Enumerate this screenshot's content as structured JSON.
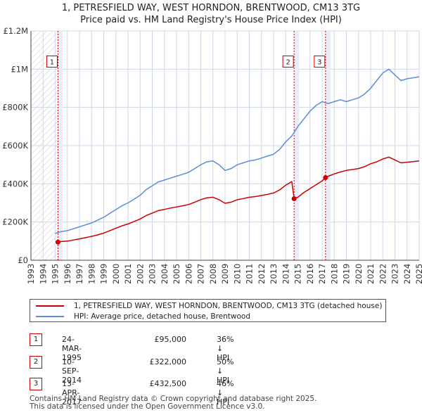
{
  "title_line1": "1, PETRESFIELD WAY, WEST HORNDON, BRENTWOOD, CM13 3TG",
  "title_line2": "Price paid vs. HM Land Registry's House Price Index (HPI)",
  "colors": {
    "red": "#cc0000",
    "blue": "#5b8dd6",
    "grid": "#cfd8e8",
    "shade": "#e8edf7",
    "axis": "#444444"
  },
  "legend": {
    "red_label": "1, PETRESFIELD WAY, WEST HORNDON, BRENTWOOD, CM13 3TG (detached house)",
    "blue_label": "HPI: Average price, detached house, Brentwood"
  },
  "transactions": [
    {
      "num": "1",
      "date": "24-MAR-1995",
      "price": "£95,000",
      "hpi": "36% ↓ HPI"
    },
    {
      "num": "2",
      "date": "10-SEP-2014",
      "price": "£322,000",
      "hpi": "50% ↓ HPI"
    },
    {
      "num": "3",
      "date": "13-APR-2017",
      "price": "£432,500",
      "hpi": "46% ↓ HPI"
    }
  ],
  "footer": {
    "line1": "Contains HM Land Registry data © Crown copyright and database right 2025.",
    "line2": "This data is licensed under the Open Government Licence v3.0."
  },
  "chart_data": {
    "type": "line",
    "title": "1, PETRESFIELD WAY, WEST HORNDON, BRENTWOOD, CM13 3TG — Price paid vs. HM Land Registry's House Price Index (HPI)",
    "xlabel": "",
    "ylabel": "",
    "xlim": [
      1993,
      2025
    ],
    "ylim": [
      0,
      1200000
    ],
    "y_ticks": [
      0,
      200000,
      400000,
      600000,
      800000,
      1000000,
      1200000
    ],
    "y_tick_labels": [
      "£0",
      "£200K",
      "£400K",
      "£600K",
      "£800K",
      "£1M",
      "£1.2M"
    ],
    "x_ticks": [
      1993,
      1994,
      1995,
      1996,
      1997,
      1998,
      1999,
      2000,
      2001,
      2002,
      2003,
      2004,
      2005,
      2006,
      2007,
      2008,
      2009,
      2010,
      2011,
      2012,
      2013,
      2014,
      2015,
      2016,
      2017,
      2018,
      2019,
      2020,
      2021,
      2022,
      2023,
      2024,
      2025
    ],
    "x_tick_labels": [
      "1993",
      "1994",
      "1995",
      "1996",
      "1997",
      "1998",
      "1999",
      "2000",
      "2001",
      "2002",
      "2003",
      "2004",
      "2005",
      "2006",
      "2007",
      "2008",
      "2009",
      "2010",
      "2011",
      "2012",
      "2013",
      "2014",
      "2015",
      "2016",
      "2017",
      "2018",
      "2019",
      "2020",
      "2021",
      "2022",
      "2023",
      "2024",
      "2025"
    ],
    "hatched_until": 1995.23,
    "shaded_ranges": [
      [
        1995.23,
        1995.6
      ],
      [
        2014.69,
        2015.1
      ],
      [
        2017.28,
        2017.7
      ]
    ],
    "markers": [
      {
        "label": "1",
        "x": 1995.23,
        "y": 95000,
        "box_y": 1040000
      },
      {
        "label": "2",
        "x": 2014.69,
        "y": 322000,
        "box_y": 1040000
      },
      {
        "label": "3",
        "x": 2017.28,
        "y": 432500,
        "box_y": 1040000
      }
    ],
    "series": [
      {
        "name": "HPI: Average price, detached house, Brentwood",
        "color": "#5b8dd6",
        "x": [
          1995.0,
          1995.5,
          1996.0,
          1996.5,
          1997.0,
          1997.5,
          1998.0,
          1998.5,
          1999.0,
          1999.5,
          2000.0,
          2000.5,
          2001.0,
          2001.5,
          2002.0,
          2002.5,
          2003.0,
          2003.5,
          2004.0,
          2004.5,
          2005.0,
          2005.5,
          2006.0,
          2006.5,
          2007.0,
          2007.5,
          2008.0,
          2008.5,
          2009.0,
          2009.5,
          2010.0,
          2010.5,
          2011.0,
          2011.5,
          2012.0,
          2012.5,
          2013.0,
          2013.5,
          2014.0,
          2014.5,
          2015.0,
          2015.5,
          2016.0,
          2016.5,
          2017.0,
          2017.5,
          2018.0,
          2018.5,
          2019.0,
          2019.5,
          2020.0,
          2020.5,
          2021.0,
          2021.5,
          2022.0,
          2022.5,
          2023.0,
          2023.5,
          2024.0,
          2024.5,
          2025.0
        ],
        "y": [
          140000,
          150000,
          155000,
          165000,
          175000,
          185000,
          195000,
          210000,
          225000,
          245000,
          265000,
          285000,
          300000,
          320000,
          340000,
          370000,
          390000,
          410000,
          420000,
          430000,
          440000,
          450000,
          460000,
          480000,
          500000,
          515000,
          520000,
          500000,
          470000,
          480000,
          500000,
          510000,
          520000,
          525000,
          535000,
          545000,
          555000,
          580000,
          620000,
          650000,
          700000,
          740000,
          780000,
          810000,
          830000,
          820000,
          830000,
          840000,
          830000,
          840000,
          850000,
          870000,
          900000,
          940000,
          980000,
          1000000,
          970000,
          940000,
          950000,
          955000,
          960000
        ]
      },
      {
        "name": "1, PETRESFIELD WAY, WEST HORNDON, BRENTWOOD, CM13 3TG (detached house)",
        "color": "#cc0000",
        "x": [
          1995.23,
          1995.5,
          1996.0,
          1996.5,
          1997.0,
          1997.5,
          1998.0,
          1998.5,
          1999.0,
          1999.5,
          2000.0,
          2000.5,
          2001.0,
          2001.5,
          2002.0,
          2002.5,
          2003.0,
          2003.5,
          2004.0,
          2004.5,
          2005.0,
          2005.5,
          2006.0,
          2006.5,
          2007.0,
          2007.5,
          2008.0,
          2008.5,
          2009.0,
          2009.5,
          2010.0,
          2010.5,
          2011.0,
          2011.5,
          2012.0,
          2012.5,
          2013.0,
          2013.5,
          2014.0,
          2014.5,
          2014.69,
          2015.0,
          2015.5,
          2016.0,
          2016.5,
          2017.0,
          2017.28,
          2017.5,
          2018.0,
          2018.5,
          2019.0,
          2019.5,
          2020.0,
          2020.5,
          2021.0,
          2021.5,
          2022.0,
          2022.5,
          2023.0,
          2023.5,
          2024.0,
          2024.5,
          2025.0
        ],
        "y": [
          95000,
          98000,
          100000,
          106000,
          112000,
          118000,
          125000,
          133000,
          142000,
          155000,
          168000,
          180000,
          190000,
          203000,
          216000,
          234000,
          247000,
          260000,
          266000,
          273000,
          279000,
          285000,
          292000,
          304000,
          317000,
          327000,
          330000,
          317000,
          298000,
          304000,
          317000,
          323000,
          330000,
          333000,
          339000,
          345000,
          352000,
          368000,
          393000,
          412000,
          322000,
          330000,
          355000,
          375000,
          395000,
          415000,
          432500,
          440000,
          452000,
          462000,
          470000,
          475000,
          480000,
          490000,
          505000,
          515000,
          530000,
          540000,
          525000,
          510000,
          513000,
          516000,
          520000
        ]
      }
    ]
  }
}
